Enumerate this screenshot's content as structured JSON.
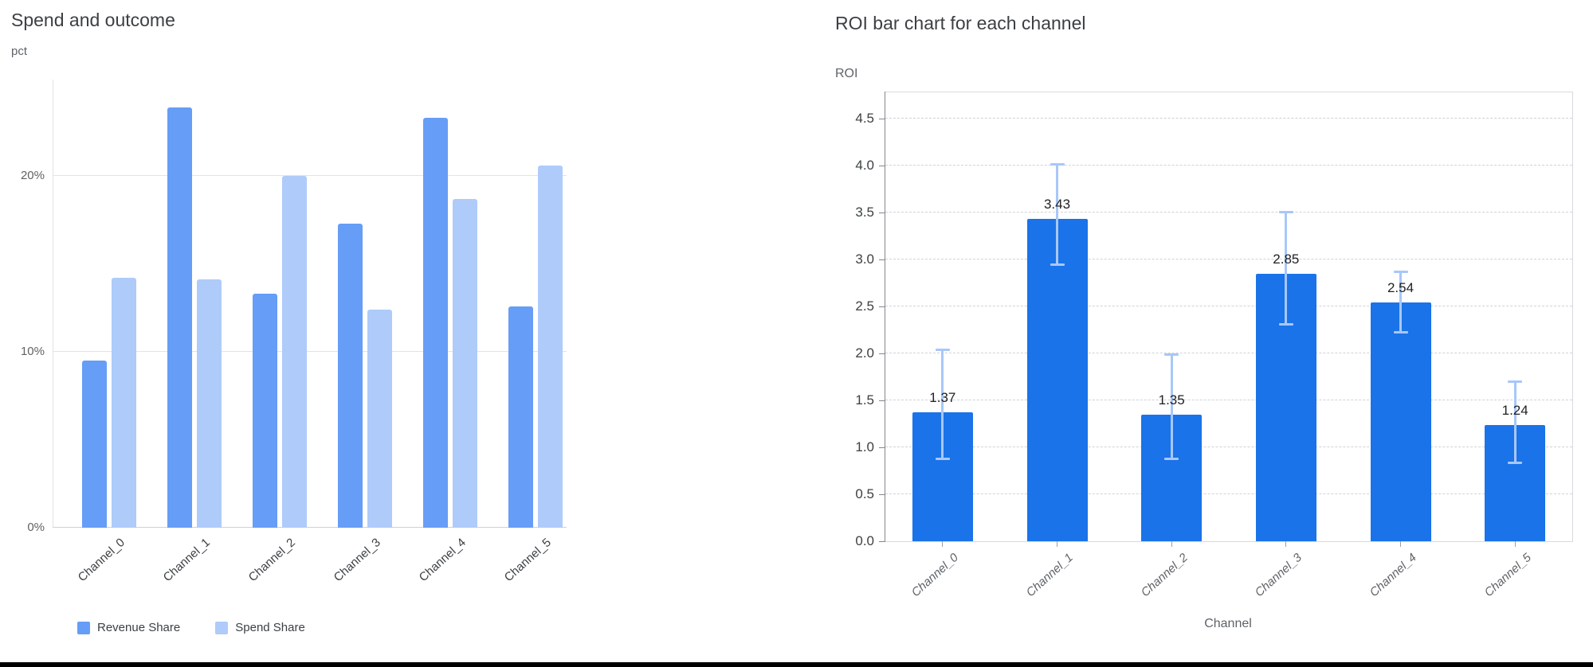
{
  "page": {
    "background_color": "#ffffff",
    "bottom_border_color": "#000000"
  },
  "chart_data": [
    {
      "id": "spend_and_outcome",
      "type": "bar",
      "title": "Spend and outcome",
      "ylabel": "pct",
      "xlabel": "",
      "categories": [
        "Channel_0",
        "Channel_1",
        "Channel_2",
        "Channel_3",
        "Channel_4",
        "Channel_5"
      ],
      "series": [
        {
          "name": "Revenue Share",
          "color": "#669DF6",
          "values": [
            9.5,
            23.9,
            13.3,
            17.3,
            23.3,
            12.6
          ]
        },
        {
          "name": "Spend Share",
          "color": "#AECBFA",
          "values": [
            14.2,
            14.1,
            20.0,
            12.4,
            18.7,
            20.6
          ]
        }
      ],
      "y_ticks": [
        {
          "value": 0,
          "label": "0%"
        },
        {
          "value": 10,
          "label": "10%"
        },
        {
          "value": 20,
          "label": "20%"
        }
      ],
      "ylim": [
        0,
        25.5
      ],
      "grid": "horizontal-solid",
      "legend_position": "bottom-left",
      "value_format": "percent"
    },
    {
      "id": "roi_by_channel",
      "type": "bar",
      "title": "ROI bar chart for each channel",
      "ylabel": "ROI",
      "xlabel": "Channel",
      "categories": [
        "Channel_0",
        "Channel_1",
        "Channel_2",
        "Channel_3",
        "Channel_4",
        "Channel_5"
      ],
      "values": [
        1.37,
        3.43,
        1.35,
        2.85,
        2.54,
        1.24
      ],
      "bar_labels": [
        "1.37",
        "3.43",
        "1.35",
        "2.85",
        "2.54",
        "1.24"
      ],
      "error_low": [
        0.88,
        2.95,
        0.88,
        2.31,
        2.23,
        0.84
      ],
      "error_high": [
        2.04,
        4.02,
        1.99,
        3.51,
        2.87,
        1.7
      ],
      "bar_color": "#1A73E8",
      "error_bar_color": "#A8C7FA",
      "y_ticks": [
        {
          "value": 0.0,
          "label": "0.0"
        },
        {
          "value": 0.5,
          "label": "0.5"
        },
        {
          "value": 1.0,
          "label": "1.0"
        },
        {
          "value": 1.5,
          "label": "1.5"
        },
        {
          "value": 2.0,
          "label": "2.0"
        },
        {
          "value": 2.5,
          "label": "2.5"
        },
        {
          "value": 3.0,
          "label": "3.0"
        },
        {
          "value": 3.5,
          "label": "3.5"
        },
        {
          "value": 4.0,
          "label": "4.0"
        },
        {
          "value": 4.5,
          "label": "4.5"
        }
      ],
      "ylim": [
        0,
        4.78
      ],
      "grid": "horizontal-dashed",
      "legend_position": "none"
    }
  ]
}
